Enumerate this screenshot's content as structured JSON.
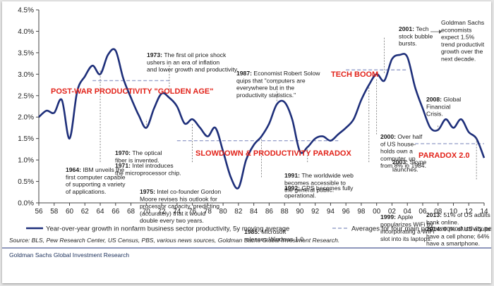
{
  "chart_data": {
    "type": "line",
    "title": "",
    "xlabel": "",
    "ylabel": "",
    "x_tick_labels": [
      "56",
      "58",
      "60",
      "62",
      "64",
      "66",
      "68",
      "70",
      "72",
      "74",
      "76",
      "78",
      "80",
      "82",
      "84",
      "86",
      "88",
      "90",
      "92",
      "94",
      "96",
      "98",
      "00",
      "02",
      "04",
      "06",
      "08",
      "10",
      "12",
      "14"
    ],
    "y_tick_labels": [
      "0.0%",
      "0.5%",
      "1.0%",
      "1.5%",
      "2.0%",
      "2.5%",
      "3.0%",
      "3.5%",
      "4.0%",
      "4.5%"
    ],
    "ylim": [
      0,
      4.5
    ],
    "grid": false,
    "legend_position": "bottom",
    "series": [
      {
        "name": "Year-over-year growth in nonfarm business sector productivity, 5y moving average",
        "color": "#1e2f7a",
        "x": [
          1956,
          1957,
          1958,
          1959,
          1960,
          1961,
          1962,
          1963,
          1964,
          1965,
          1966,
          1967,
          1968,
          1969,
          1970,
          1971,
          1972,
          1973,
          1974,
          1975,
          1976,
          1977,
          1978,
          1979,
          1980,
          1981,
          1982,
          1983,
          1984,
          1985,
          1986,
          1987,
          1988,
          1989,
          1990,
          1991,
          1992,
          1993,
          1994,
          1995,
          1996,
          1997,
          1998,
          1999,
          2000,
          2001,
          2002,
          2003,
          2004,
          2005,
          2006,
          2007,
          2008,
          2009,
          2010,
          2011,
          2012,
          2013,
          2014
        ],
        "y": [
          2.0,
          2.15,
          2.1,
          2.4,
          1.5,
          2.6,
          2.95,
          3.2,
          3.0,
          3.45,
          3.55,
          2.9,
          2.45,
          2.05,
          1.75,
          2.2,
          2.55,
          2.45,
          2.25,
          1.85,
          1.95,
          1.75,
          1.55,
          1.75,
          1.2,
          0.6,
          0.35,
          1.0,
          1.35,
          1.55,
          1.85,
          2.3,
          2.35,
          1.95,
          1.2,
          1.3,
          1.5,
          1.55,
          1.45,
          1.6,
          1.75,
          1.95,
          2.4,
          2.75,
          3.0,
          2.85,
          3.35,
          3.45,
          3.4,
          2.7,
          2.2,
          1.75,
          1.7,
          1.95,
          1.75,
          1.95,
          1.65,
          1.5,
          1.05
        ]
      },
      {
        "name": "Averages for four main post-war productivity periods",
        "color": "#9aa3cc",
        "segments": [
          {
            "label": "POST-WAR PRODUCTIVITY \"GOLDEN AGE\"",
            "x_start": 1963,
            "x_end": 1973,
            "y": 2.85
          },
          {
            "label": "SLOWDOWN & PRODUCTIVITY PARADOX",
            "x_start": 1974,
            "x_end": 1995,
            "y": 1.45
          },
          {
            "label": "TECH BOOM",
            "x_start": 1996,
            "x_end": 2004,
            "y": 3.1
          },
          {
            "label": "PARADOX 2.0",
            "x_start": 2005,
            "x_end": 2014,
            "y": 1.38
          }
        ]
      }
    ],
    "annotations": [
      {
        "year": "1964:",
        "text": [
          "IBM unveils the",
          "first computer capable",
          "of supporting a variety",
          "of applications."
        ]
      },
      {
        "year": "1970:",
        "text": [
          "The optical",
          "fiber is invented."
        ]
      },
      {
        "year": "1971:",
        "text": [
          "Intel introduces",
          "the microprocessor chip."
        ]
      },
      {
        "year": "1973:",
        "text": [
          "The first oil price shock",
          "ushers in an era of inflation",
          "and lower growth and productivity."
        ]
      },
      {
        "year": "1975:",
        "text": [
          "Intel co-founder Gordon",
          "Moore revises his outlook for",
          "processor capacity, predicting",
          "(accurately) that it would",
          "double every two years."
        ]
      },
      {
        "year": "1985:",
        "text": [
          "Microsoft",
          "releases Windows 1.0."
        ]
      },
      {
        "year": "1987:",
        "text": [
          "Economist Robert Solow",
          "quips that \"computers are",
          "everywhere but in the",
          "productivity statistics.\""
        ]
      },
      {
        "year": "1991:",
        "text": [
          "The worldwide web",
          "becomes accessible to",
          "the general public."
        ]
      },
      {
        "year": "1992:",
        "text": [
          "GPS becomes fully",
          "operational."
        ]
      },
      {
        "year": "1999:",
        "text": [
          "Apple",
          "popularizes WiFi by",
          "incorporating a WiFi",
          "slot into its laptops."
        ]
      },
      {
        "year": "2000:",
        "text": [
          "Over half",
          "of US house-",
          "holds own a",
          "computer, up",
          "from 8% in 1984."
        ]
      },
      {
        "year": "2001:",
        "text": [
          "Tech",
          "stock bubble",
          "bursts."
        ]
      },
      {
        "year": "2003:",
        "text": [
          "Skype",
          "launches."
        ]
      },
      {
        "year": "2008:",
        "text": [
          "Global",
          "Financial",
          "Crisis."
        ]
      },
      {
        "year": "2013:",
        "text": [
          "51% of US adults",
          "bank online."
        ]
      },
      {
        "year": "2014:",
        "text": [
          "90% of US adults",
          "have a cell phone; 64%",
          "have a smartphone."
        ]
      },
      {
        "year": "",
        "text": [
          "Goldman Sachs",
          "economists",
          "expect 1.5%",
          "trend productivit",
          "growth over the",
          "next decade."
        ]
      }
    ]
  },
  "source": "Source: BLS, Pew Research Center, US Census, PBS, various news sources, Goldman Sachs Global Investment Research.",
  "footer": "Goldman Sachs Global Investment Research",
  "colors": {
    "line": "#1e2f7a",
    "average": "#9aa3cc",
    "period_label": "#e2231a",
    "divider": "#1e2f7a"
  }
}
